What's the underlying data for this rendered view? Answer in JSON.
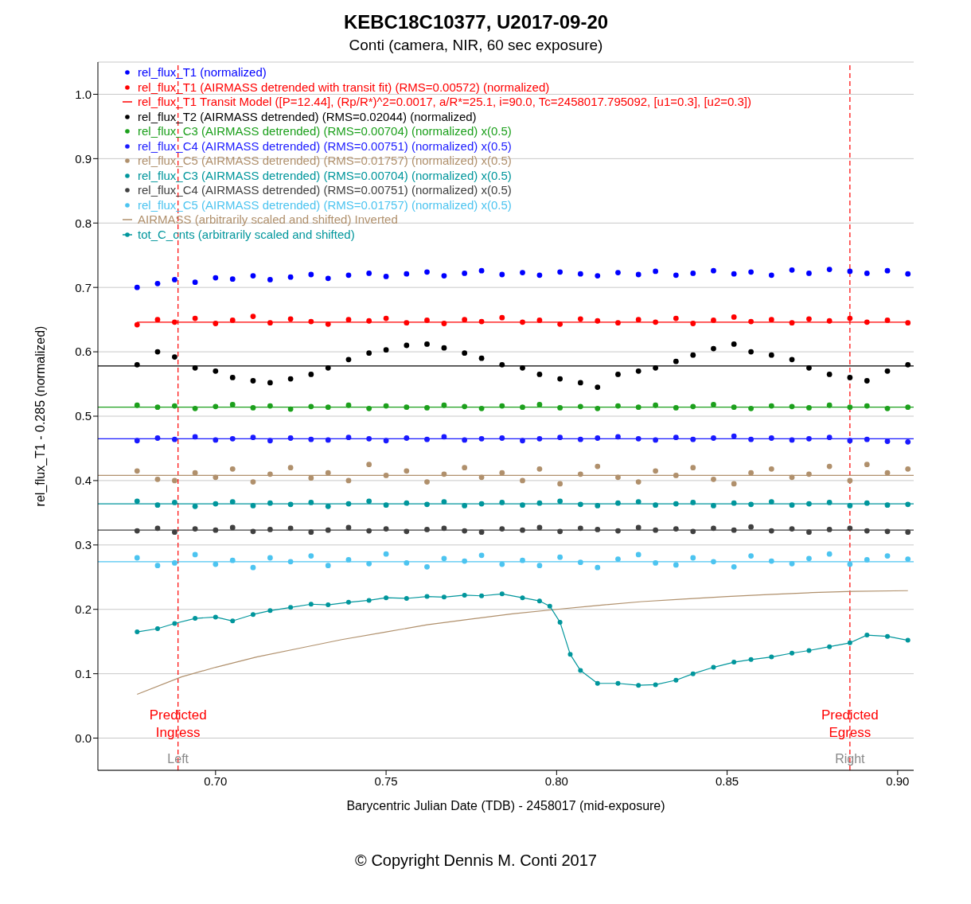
{
  "chart_data": {
    "type": "scatter",
    "title": "KEBC18C10377, U2017-09-20",
    "subtitle": "Conti (camera, NIR, 60 sec exposure)",
    "xlabel": "Barycentric Julian Date (TDB) - 2458017 (mid-exposure)",
    "ylabel": "rel_flux_T1 - 0.285 (normalized)",
    "xlim": [
      0.6655,
      0.9047
    ],
    "ylim": [
      -0.05,
      1.05
    ],
    "xticks": [
      {
        "value": 0.7,
        "label": "0.70"
      },
      {
        "value": 0.75,
        "label": "0.75"
      },
      {
        "value": 0.8,
        "label": "0.80"
      },
      {
        "value": 0.85,
        "label": "0.85"
      },
      {
        "value": 0.9,
        "label": "0.90"
      }
    ],
    "yticks": [
      {
        "value": 0,
        "label": "0.0"
      },
      {
        "value": 0.1,
        "label": "0.1"
      },
      {
        "value": 0.2,
        "label": "0.2"
      },
      {
        "value": 0.3,
        "label": "0.3"
      },
      {
        "value": 0.4,
        "label": "0.4"
      },
      {
        "value": 0.5,
        "label": "0.5"
      },
      {
        "value": 0.6,
        "label": "0.6"
      },
      {
        "value": 0.7,
        "label": "0.7"
      },
      {
        "value": 0.8,
        "label": "0.8"
      },
      {
        "value": 0.9,
        "label": "0.9"
      },
      {
        "value": 1,
        "label": "1.0"
      }
    ],
    "grid": "y",
    "legend": "top left",
    "marker": "circle",
    "x": [
      0.677,
      0.683,
      0.688,
      0.694,
      0.7,
      0.705,
      0.711,
      0.716,
      0.722,
      0.728,
      0.733,
      0.739,
      0.745,
      0.75,
      0.756,
      0.762,
      0.767,
      0.773,
      0.778,
      0.784,
      0.79,
      0.795,
      0.801,
      0.807,
      0.812,
      0.818,
      0.824,
      0.829,
      0.835,
      0.84,
      0.846,
      0.852,
      0.857,
      0.863,
      0.869,
      0.874,
      0.88,
      0.886,
      0.891,
      0.897,
      0.903
    ],
    "series": [
      {
        "name": "rel_flux_T1 (normalized)",
        "color": "#0000ff",
        "values": [
          0.7,
          0.706,
          0.712,
          0.708,
          0.715,
          0.713,
          0.718,
          0.712,
          0.716,
          0.72,
          0.714,
          0.719,
          0.722,
          0.717,
          0.721,
          0.724,
          0.718,
          0.722,
          0.726,
          0.72,
          0.723,
          0.719,
          0.724,
          0.721,
          0.718,
          0.723,
          0.72,
          0.725,
          0.719,
          0.722,
          0.726,
          0.721,
          0.724,
          0.719,
          0.727,
          0.722,
          0.728,
          0.725,
          0.722,
          0.726,
          0.721
        ]
      },
      {
        "name": "rel_flux_T1 (AIRMASS detrended with transit fit) (RMS=0.00572) (normalized)",
        "color": "#ff0000",
        "values": [
          0.642,
          0.65,
          0.646,
          0.652,
          0.644,
          0.649,
          0.655,
          0.645,
          0.651,
          0.647,
          0.643,
          0.65,
          0.648,
          0.652,
          0.645,
          0.649,
          0.644,
          0.65,
          0.647,
          0.653,
          0.646,
          0.649,
          0.643,
          0.651,
          0.648,
          0.645,
          0.65,
          0.646,
          0.652,
          0.644,
          0.649,
          0.654,
          0.647,
          0.65,
          0.645,
          0.651,
          0.648,
          0.652,
          0.646,
          0.649,
          0.645
        ]
      },
      {
        "type": "line",
        "name": "rel_flux_T1 Transit Model ([P=12.44], (Rp/R*)^2=0.0017, a/R*=25.1, i=90.0, Tc=2458017.795092, [u1=0.3], [u2=0.3])",
        "color": "#ff0000",
        "marker": "none",
        "x": [
          0.677,
          0.903
        ],
        "values": [
          0.646,
          0.646
        ]
      },
      {
        "name": "rel_flux_T2 (AIRMASS detrended) (RMS=0.02044) (normalized)",
        "color": "#000000",
        "values": [
          0.58,
          0.6,
          0.592,
          0.575,
          0.57,
          0.56,
          0.555,
          0.552,
          0.558,
          0.565,
          0.575,
          0.588,
          0.598,
          0.603,
          0.61,
          0.612,
          0.606,
          0.598,
          0.59,
          0.58,
          0.575,
          0.565,
          0.558,
          0.552,
          0.545,
          0.565,
          0.57,
          0.575,
          0.585,
          0.595,
          0.605,
          0.612,
          0.6,
          0.595,
          0.588,
          0.575,
          0.565,
          0.56,
          0.555,
          0.57,
          0.58
        ]
      },
      {
        "name": "rel_flux_C3 (AIRMASS detrended) (RMS=0.00704) (normalized) x(0.5)",
        "color": "#1ca01c",
        "values": [
          0.517,
          0.514,
          0.516,
          0.512,
          0.515,
          0.518,
          0.513,
          0.516,
          0.511,
          0.515,
          0.514,
          0.517,
          0.512,
          0.516,
          0.514,
          0.513,
          0.517,
          0.515,
          0.512,
          0.516,
          0.514,
          0.518,
          0.513,
          0.515,
          0.512,
          0.516,
          0.514,
          0.517,
          0.513,
          0.515,
          0.518,
          0.514,
          0.512,
          0.516,
          0.515,
          0.513,
          0.517,
          0.514,
          0.516,
          0.512,
          0.514
        ]
      },
      {
        "name": "rel_flux_C4 (AIRMASS detrended) (RMS=0.00751) (normalized) x(0.5)",
        "color": "#1a1aff",
        "values": [
          0.462,
          0.466,
          0.464,
          0.468,
          0.463,
          0.465,
          0.467,
          0.462,
          0.466,
          0.464,
          0.463,
          0.467,
          0.465,
          0.462,
          0.466,
          0.464,
          0.468,
          0.463,
          0.465,
          0.466,
          0.462,
          0.465,
          0.467,
          0.464,
          0.466,
          0.468,
          0.465,
          0.463,
          0.467,
          0.464,
          0.466,
          0.469,
          0.464,
          0.466,
          0.463,
          0.465,
          0.467,
          0.462,
          0.464,
          0.461,
          0.46
        ]
      },
      {
        "name": "rel_flux_C5 (AIRMASS detrended) (RMS=0.01757) (normalized) x(0.5)",
        "color": "#b0906c",
        "values": [
          0.415,
          0.402,
          0.4,
          0.412,
          0.405,
          0.418,
          0.398,
          0.41,
          0.42,
          0.404,
          0.412,
          0.4,
          0.425,
          0.408,
          0.415,
          0.398,
          0.41,
          0.42,
          0.405,
          0.412,
          0.4,
          0.418,
          0.395,
          0.41,
          0.422,
          0.405,
          0.398,
          0.415,
          0.408,
          0.42,
          0.402,
          0.395,
          0.412,
          0.418,
          0.405,
          0.41,
          0.422,
          0.4,
          0.425,
          0.412,
          0.418
        ]
      },
      {
        "name": "rel_flux_C3 (AIRMASS detrended) (RMS=0.00704) (normalized) x(0.5)",
        "color": "#00969c",
        "values": [
          0.368,
          0.362,
          0.366,
          0.36,
          0.364,
          0.367,
          0.361,
          0.365,
          0.363,
          0.366,
          0.36,
          0.364,
          0.368,
          0.362,
          0.365,
          0.363,
          0.367,
          0.361,
          0.364,
          0.366,
          0.362,
          0.365,
          0.368,
          0.363,
          0.361,
          0.365,
          0.367,
          0.362,
          0.364,
          0.366,
          0.361,
          0.365,
          0.363,
          0.367,
          0.362,
          0.364,
          0.366,
          0.361,
          0.365,
          0.362,
          0.363
        ]
      },
      {
        "name": "rel_flux_C4 (AIRMASS detrended) (RMS=0.00751) (normalized) x(0.5)",
        "color": "#404040",
        "values": [
          0.322,
          0.326,
          0.32,
          0.325,
          0.323,
          0.327,
          0.321,
          0.324,
          0.326,
          0.32,
          0.323,
          0.327,
          0.322,
          0.325,
          0.321,
          0.324,
          0.326,
          0.322,
          0.32,
          0.325,
          0.323,
          0.327,
          0.321,
          0.326,
          0.324,
          0.322,
          0.327,
          0.323,
          0.325,
          0.321,
          0.326,
          0.323,
          0.328,
          0.322,
          0.325,
          0.32,
          0.324,
          0.326,
          0.322,
          0.321,
          0.32
        ]
      },
      {
        "name": "rel_flux_C5 (AIRMASS detrended) (RMS=0.01757) (normalized) x(0.5)",
        "color": "#4cc4f0",
        "values": [
          0.28,
          0.268,
          0.272,
          0.285,
          0.27,
          0.276,
          0.265,
          0.28,
          0.274,
          0.283,
          0.268,
          0.277,
          0.271,
          0.286,
          0.272,
          0.266,
          0.279,
          0.275,
          0.284,
          0.27,
          0.276,
          0.268,
          0.281,
          0.273,
          0.265,
          0.278,
          0.285,
          0.272,
          0.269,
          0.28,
          0.274,
          0.266,
          0.283,
          0.275,
          0.271,
          0.279,
          0.286,
          0.27,
          0.277,
          0.283,
          0.278
        ]
      },
      {
        "type": "line",
        "name": "AIRMASS (arbitrarily scaled and shifted) Inverted",
        "color": "#b0906c",
        "marker": "none",
        "x": [
          0.677,
          0.69,
          0.7,
          0.712,
          0.725,
          0.737,
          0.75,
          0.762,
          0.775,
          0.787,
          0.8,
          0.812,
          0.825,
          0.837,
          0.85,
          0.862,
          0.875,
          0.887,
          0.903
        ],
        "values": [
          0.068,
          0.095,
          0.11,
          0.126,
          0.14,
          0.153,
          0.165,
          0.176,
          0.185,
          0.193,
          0.2,
          0.206,
          0.212,
          0.216,
          0.22,
          0.223,
          0.226,
          0.228,
          0.229
        ]
      },
      {
        "type": "line",
        "name": "tot_C_cnts (arbitrarily scaled and shifted)",
        "color": "#00969c",
        "marker": "circle",
        "x": [
          0.677,
          0.683,
          0.688,
          0.694,
          0.7,
          0.705,
          0.711,
          0.716,
          0.722,
          0.728,
          0.733,
          0.739,
          0.745,
          0.75,
          0.756,
          0.762,
          0.767,
          0.773,
          0.778,
          0.784,
          0.79,
          0.795,
          0.798,
          0.801,
          0.804,
          0.807,
          0.812,
          0.818,
          0.824,
          0.829,
          0.835,
          0.84,
          0.846,
          0.852,
          0.857,
          0.863,
          0.869,
          0.874,
          0.88,
          0.886,
          0.891,
          0.897,
          0.903
        ],
        "values": [
          0.165,
          0.17,
          0.178,
          0.186,
          0.188,
          0.182,
          0.192,
          0.198,
          0.203,
          0.208,
          0.207,
          0.211,
          0.214,
          0.218,
          0.217,
          0.22,
          0.219,
          0.222,
          0.221,
          0.224,
          0.218,
          0.213,
          0.205,
          0.18,
          0.13,
          0.105,
          0.085,
          0.085,
          0.082,
          0.083,
          0.09,
          0.1,
          0.11,
          0.118,
          0.122,
          0.126,
          0.132,
          0.136,
          0.142,
          0.148,
          0.16,
          0.158,
          0.152
        ]
      }
    ],
    "ref_lines": [
      {
        "axis": "x",
        "value": 0.689,
        "label": "Predicted Ingress",
        "color": "#ff0000",
        "line_style": "dashed"
      },
      {
        "axis": "x",
        "value": 0.886,
        "label": "Predicted Egress",
        "color": "#ff0000",
        "line_style": "dashed"
      },
      {
        "axis": "y",
        "value": 0.578,
        "color": "#000000"
      },
      {
        "axis": "y",
        "value": 0.514,
        "color": "#1ca01c"
      },
      {
        "axis": "y",
        "value": 0.465,
        "color": "#1a1aff"
      },
      {
        "axis": "y",
        "value": 0.408,
        "color": "#b0906c"
      },
      {
        "axis": "y",
        "value": 0.364,
        "color": "#00969c"
      },
      {
        "axis": "y",
        "value": 0.323,
        "color": "#404040"
      },
      {
        "axis": "y",
        "value": 0.274,
        "color": "#4cc4f0"
      }
    ],
    "annotations": [
      {
        "text": "Left",
        "x": 0.689,
        "y": -0.032
      },
      {
        "text": "Right",
        "x": 0.886,
        "y": -0.032
      },
      "© Copyright Dennis M. Conti 2017"
    ]
  }
}
